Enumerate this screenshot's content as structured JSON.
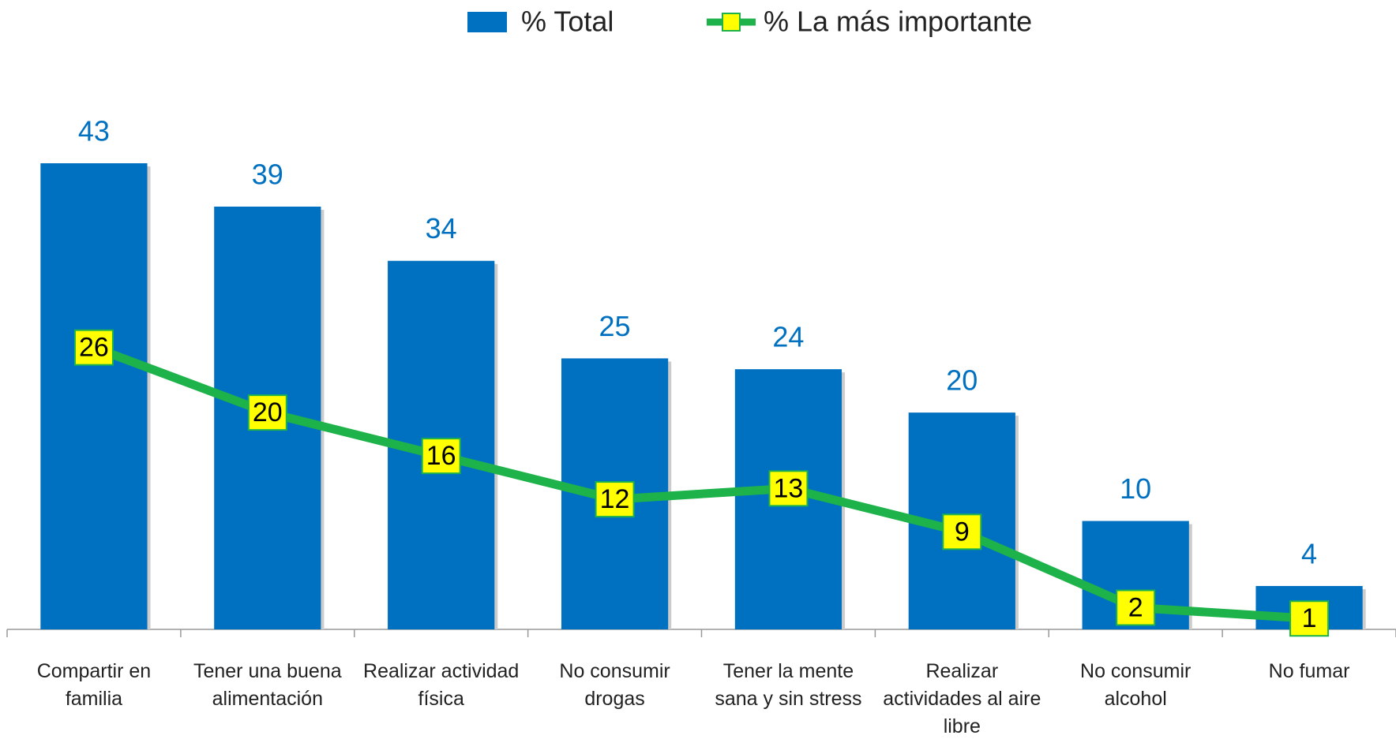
{
  "chart_data": {
    "type": "bar",
    "categories": [
      "Compartir en familia",
      "Tener una buena alimentación",
      "Realizar actividad física",
      "No consumir drogas",
      "Tener la mente sana y sin stress",
      "Realizar actividades al aire libre",
      "No consumir alcohol",
      "No fumar"
    ],
    "series": [
      {
        "name": "% Total",
        "type": "bar",
        "color": "#0070c0",
        "values": [
          43,
          39,
          34,
          25,
          24,
          20,
          10,
          4
        ]
      },
      {
        "name": "% La más importante",
        "type": "line",
        "color": "#1db34a",
        "marker_color": "#ffff00",
        "values": [
          26,
          20,
          16,
          12,
          13,
          9,
          2,
          1
        ]
      }
    ]
  }
}
